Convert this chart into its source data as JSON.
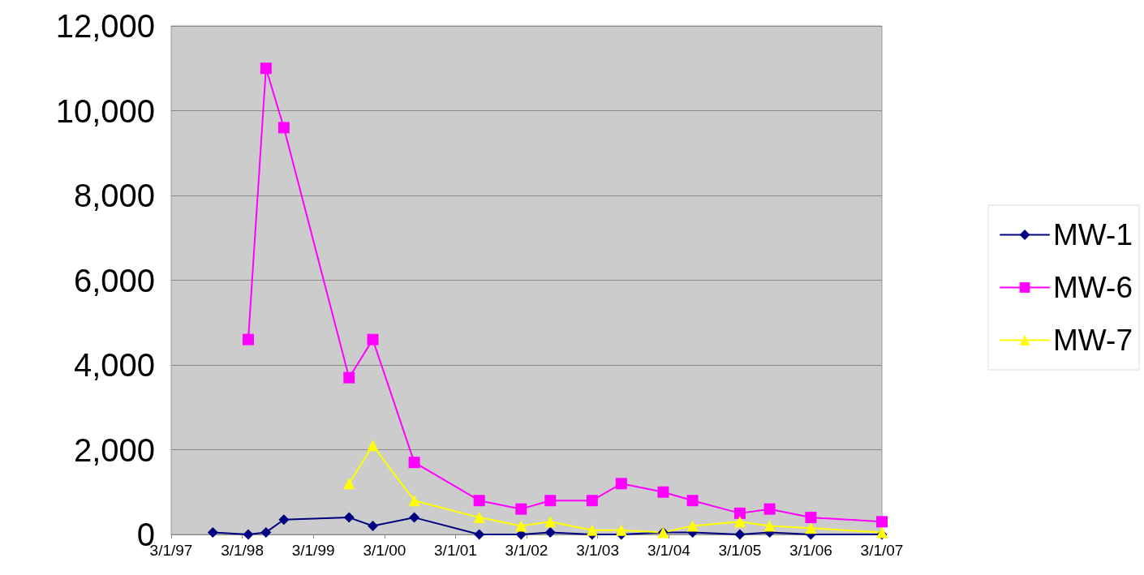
{
  "chart_data": {
    "type": "line",
    "xlim": [
      "1997-03-01",
      "2007-03-01"
    ],
    "xticks": [
      {
        "value": "1997-03-01",
        "label": "3/1/97"
      },
      {
        "value": "1998-03-01",
        "label": "3/1/98"
      },
      {
        "value": "1999-03-01",
        "label": "3/1/99"
      },
      {
        "value": "2000-03-01",
        "label": "3/1/00"
      },
      {
        "value": "2001-03-01",
        "label": "3/1/01"
      },
      {
        "value": "2002-03-01",
        "label": "3/1/02"
      },
      {
        "value": "2003-03-01",
        "label": "3/1/03"
      },
      {
        "value": "2004-03-01",
        "label": "3/1/04"
      },
      {
        "value": "2005-03-01",
        "label": "3/1/05"
      },
      {
        "value": "2006-03-01",
        "label": "3/1/06"
      },
      {
        "value": "2007-03-01",
        "label": "3/1/07"
      }
    ],
    "ylim": [
      0,
      12000
    ],
    "yticks": [
      {
        "value": 0,
        "label": "0"
      },
      {
        "value": 2000,
        "label": "2,000"
      },
      {
        "value": 4000,
        "label": "4,000"
      },
      {
        "value": 6000,
        "label": "6,000"
      },
      {
        "value": 8000,
        "label": "8,000"
      },
      {
        "value": 10000,
        "label": "10,000"
      },
      {
        "value": 12000,
        "label": "12,000"
      }
    ],
    "grid": "y",
    "legend": "right",
    "series": [
      {
        "name": "MW-1",
        "color": "#000080",
        "marker": "diamond",
        "x": [
          "1997-10",
          "1998-04",
          "1998-07",
          "1998-10",
          "1999-09",
          "2000-01",
          "2000-08",
          "2001-07",
          "2002-02",
          "2002-07",
          "2003-02",
          "2003-07",
          "2004-02",
          "2004-07",
          "2005-03",
          "2005-08",
          "2006-03",
          "2007-03"
        ],
        "values": [
          50,
          0,
          50,
          350,
          400,
          200,
          400,
          0,
          0,
          50,
          0,
          0,
          50,
          50,
          0,
          50,
          0,
          0
        ]
      },
      {
        "name": "MW-6",
        "color": "#ff00ff",
        "marker": "square",
        "x": [
          "1998-04",
          "1998-07",
          "1998-10",
          "1999-09",
          "2000-01",
          "2000-08",
          "2001-07",
          "2002-02",
          "2002-07",
          "2003-02",
          "2003-07",
          "2004-02",
          "2004-07",
          "2005-03",
          "2005-08",
          "2006-03",
          "2007-03"
        ],
        "values": [
          4600,
          11000,
          9600,
          3700,
          4600,
          1700,
          800,
          600,
          800,
          800,
          1200,
          1000,
          800,
          500,
          600,
          400,
          300
        ]
      },
      {
        "name": "MW-7",
        "color": "#ffff00",
        "marker": "triangle",
        "x": [
          "1999-09",
          "2000-01",
          "2000-08",
          "2001-07",
          "2002-02",
          "2002-07",
          "2003-02",
          "2003-07",
          "2004-02",
          "2004-07",
          "2005-03",
          "2005-08",
          "2006-03",
          "2007-03"
        ],
        "values": [
          1200,
          2100,
          800,
          400,
          200,
          300,
          100,
          100,
          50,
          200,
          300,
          200,
          150,
          50
        ]
      }
    ]
  }
}
